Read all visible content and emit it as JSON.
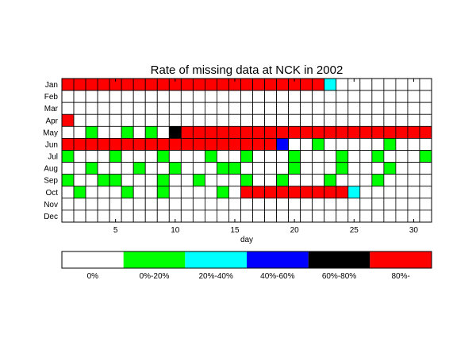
{
  "chart_data": {
    "type": "heatmap",
    "title": "Rate of missing data at NCK in 2002",
    "xlabel": "day",
    "ylabel": "",
    "months": [
      "Jan",
      "Feb",
      "Mar",
      "Apr",
      "May",
      "Jun",
      "Jul",
      "Aug",
      "Sep",
      "Oct",
      "Nov",
      "Dec"
    ],
    "days": 31,
    "xticks": [
      5,
      10,
      15,
      20,
      25,
      30
    ],
    "grid": true,
    "legend_position": "bottom",
    "color_scale": {
      "categories": [
        "0%",
        "0%-20%",
        "20%-40%",
        "40%-60%",
        "60%-80%",
        "80%-"
      ],
      "colors": [
        "#ffffff",
        "#00ff00",
        "#00ffff",
        "#0000ff",
        "#000000",
        "#ff0000"
      ]
    },
    "values": [
      [
        5,
        5,
        5,
        5,
        5,
        5,
        5,
        5,
        5,
        5,
        5,
        5,
        5,
        5,
        5,
        5,
        5,
        5,
        5,
        5,
        5,
        5,
        2,
        0,
        0,
        0,
        0,
        0,
        0,
        0,
        0
      ],
      [
        0,
        0,
        0,
        0,
        0,
        0,
        0,
        0,
        0,
        0,
        0,
        0,
        0,
        0,
        0,
        0,
        0,
        0,
        0,
        0,
        0,
        0,
        0,
        0,
        0,
        0,
        0,
        0,
        0,
        0,
        0
      ],
      [
        0,
        0,
        0,
        0,
        0,
        0,
        0,
        0,
        0,
        0,
        0,
        0,
        0,
        0,
        0,
        0,
        0,
        0,
        0,
        0,
        0,
        0,
        0,
        0,
        0,
        0,
        0,
        0,
        0,
        0,
        0
      ],
      [
        5,
        0,
        0,
        0,
        0,
        0,
        0,
        0,
        0,
        0,
        0,
        0,
        0,
        0,
        0,
        0,
        0,
        0,
        0,
        0,
        0,
        0,
        0,
        0,
        0,
        0,
        0,
        0,
        0,
        0,
        0
      ],
      [
        0,
        0,
        1,
        0,
        0,
        1,
        0,
        1,
        0,
        4,
        5,
        5,
        5,
        5,
        5,
        5,
        5,
        5,
        5,
        5,
        5,
        5,
        5,
        5,
        5,
        5,
        5,
        5,
        5,
        5,
        5
      ],
      [
        5,
        5,
        5,
        5,
        5,
        5,
        5,
        5,
        5,
        5,
        5,
        5,
        5,
        5,
        5,
        5,
        5,
        5,
        3,
        0,
        0,
        1,
        0,
        0,
        0,
        0,
        0,
        1,
        0,
        0,
        0
      ],
      [
        1,
        0,
        0,
        0,
        1,
        0,
        0,
        0,
        1,
        0,
        0,
        0,
        1,
        0,
        0,
        1,
        0,
        0,
        0,
        1,
        0,
        0,
        0,
        1,
        0,
        0,
        1,
        0,
        0,
        0,
        1
      ],
      [
        0,
        0,
        1,
        0,
        0,
        0,
        1,
        0,
        0,
        1,
        0,
        0,
        0,
        1,
        1,
        0,
        0,
        0,
        0,
        1,
        0,
        0,
        0,
        1,
        0,
        0,
        0,
        1,
        0,
        0,
        0
      ],
      [
        1,
        0,
        0,
        1,
        1,
        0,
        0,
        0,
        1,
        0,
        0,
        1,
        0,
        0,
        0,
        1,
        0,
        0,
        1,
        0,
        0,
        0,
        1,
        0,
        0,
        0,
        1,
        0,
        0,
        0,
        0
      ],
      [
        0,
        1,
        0,
        0,
        0,
        1,
        0,
        0,
        1,
        0,
        0,
        0,
        0,
        1,
        0,
        5,
        5,
        5,
        5,
        5,
        5,
        5,
        5,
        5,
        2,
        0,
        0,
        0,
        0,
        0,
        0
      ],
      [
        0,
        0,
        0,
        0,
        0,
        0,
        0,
        0,
        0,
        0,
        0,
        0,
        0,
        0,
        0,
        0,
        0,
        0,
        0,
        0,
        0,
        0,
        0,
        0,
        0,
        0,
        0,
        0,
        0,
        0,
        0
      ],
      [
        0,
        0,
        0,
        0,
        0,
        0,
        0,
        0,
        0,
        0,
        0,
        0,
        0,
        0,
        0,
        0,
        0,
        0,
        0,
        0,
        0,
        0,
        0,
        0,
        0,
        0,
        0,
        0,
        0,
        0,
        0
      ]
    ]
  }
}
